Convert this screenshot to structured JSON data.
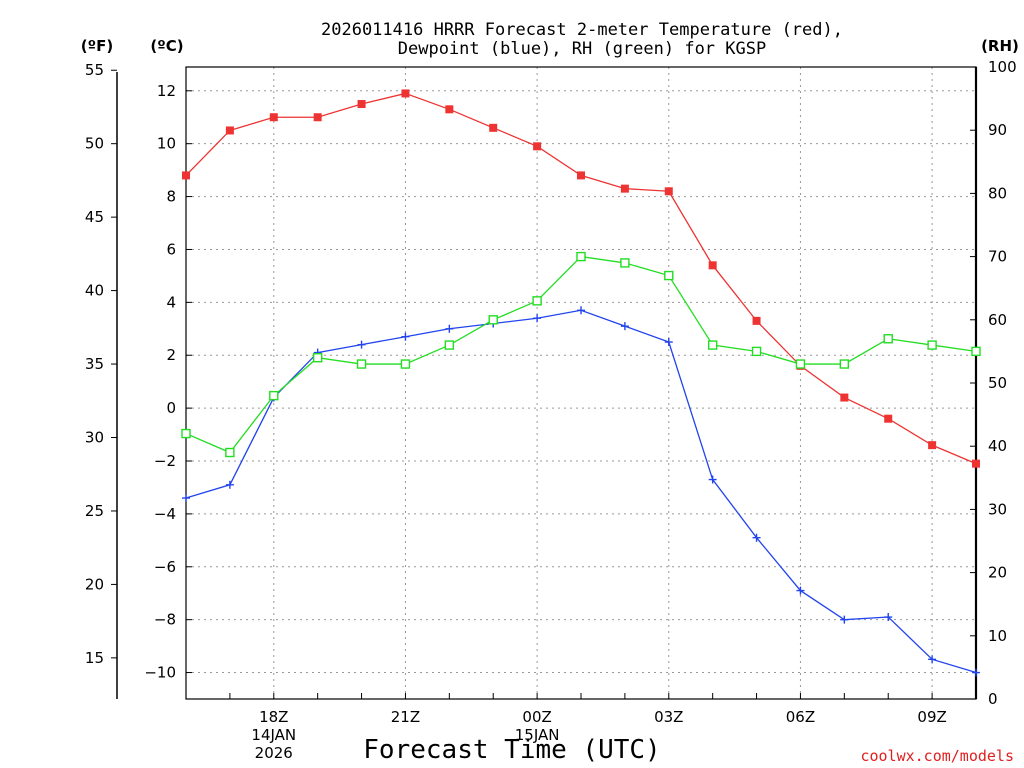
{
  "chart_data": {
    "type": "line",
    "title_line1": "2026011416 HRRR Forecast 2-meter Temperature (red),",
    "title_line2": "Dewpoint (blue), RH (green) for KGSP",
    "unit_f": "(ºF)",
    "unit_c": "(ºC)",
    "unit_rh": "(RH)",
    "xlabel": "Forecast Time (UTC)",
    "credit": "coolwx.com/models",
    "x_hours": [
      16,
      17,
      18,
      19,
      20,
      21,
      22,
      23,
      24,
      25,
      26,
      27,
      28,
      29,
      30,
      31,
      32,
      33,
      34
    ],
    "x_range": [
      16,
      34
    ],
    "x_ticks": [
      {
        "hour": 18,
        "lines": [
          "18Z",
          "14JAN",
          "2026"
        ]
      },
      {
        "hour": 21,
        "lines": [
          "21Z"
        ]
      },
      {
        "hour": 24,
        "lines": [
          "00Z",
          "15JAN"
        ]
      },
      {
        "hour": 27,
        "lines": [
          "03Z"
        ]
      },
      {
        "hour": 30,
        "lines": [
          "06Z"
        ]
      },
      {
        "hour": 33,
        "lines": [
          "09Z"
        ]
      }
    ],
    "celsius_range": [
      -11,
      12.9
    ],
    "celsius_ticks": [
      12,
      10,
      8,
      6,
      4,
      2,
      0,
      -2,
      -4,
      -6,
      -8,
      -10
    ],
    "celsius_tick_labels": [
      "12",
      "10",
      "8",
      "6",
      "4",
      "2",
      "0",
      "−2",
      "−4",
      "−6",
      "−8",
      "−10"
    ],
    "fahrenheit_ticks": [
      55,
      50,
      45,
      40,
      35,
      30,
      25,
      20,
      15
    ],
    "rh_range": [
      0,
      100
    ],
    "rh_ticks": [
      100,
      90,
      80,
      70,
      60,
      50,
      40,
      30,
      20,
      10,
      0
    ],
    "series": [
      {
        "name": "Temperature",
        "color": "#ee3333",
        "marker": "filled-square",
        "axis": "celsius",
        "values": [
          8.8,
          10.5,
          11.0,
          11.0,
          11.5,
          11.9,
          11.3,
          10.6,
          9.9,
          8.8,
          8.3,
          8.2,
          5.4,
          3.3,
          1.6,
          0.4,
          -0.4,
          -1.4,
          -2.1
        ]
      },
      {
        "name": "Dewpoint",
        "color": "#2244ee",
        "marker": "plus",
        "axis": "celsius",
        "values": [
          -3.4,
          -2.9,
          0.4,
          2.1,
          2.4,
          2.7,
          3.0,
          3.2,
          3.4,
          3.7,
          3.1,
          2.5,
          -2.7,
          -4.9,
          -6.9,
          -8.0,
          -7.9,
          -9.5,
          -10.0
        ]
      },
      {
        "name": "RH",
        "color": "#22dd22",
        "marker": "open-square",
        "axis": "rh",
        "values": [
          42,
          39,
          48,
          54,
          53,
          53,
          56,
          60,
          63,
          70,
          69,
          67,
          56,
          55,
          53,
          53,
          57,
          56,
          55
        ]
      }
    ]
  }
}
